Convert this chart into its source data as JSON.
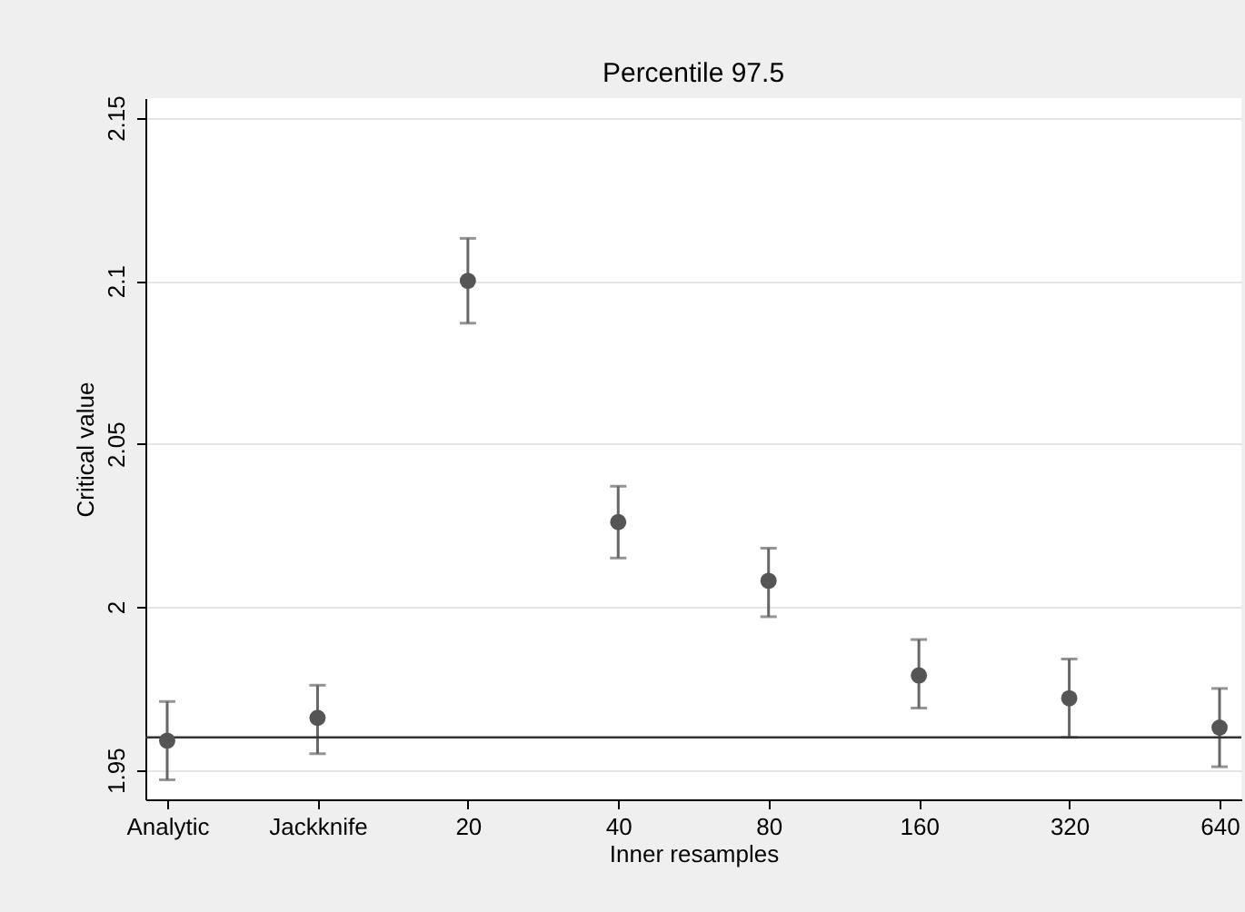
{
  "chart_data": {
    "type": "scatter",
    "title": "Percentile 97.5",
    "xlabel": "Inner resamples",
    "ylabel": "Critical value",
    "categories": [
      "Analytic",
      "Jackknife",
      "20",
      "40",
      "80",
      "160",
      "320",
      "640"
    ],
    "values": [
      1.959,
      1.966,
      2.1,
      2.026,
      2.008,
      1.979,
      1.972,
      1.963
    ],
    "errors": [
      [
        1.947,
        1.971
      ],
      [
        1.955,
        1.976
      ],
      [
        2.087,
        2.113
      ],
      [
        2.015,
        2.037
      ],
      [
        1.997,
        2.018
      ],
      [
        1.969,
        1.99
      ],
      [
        1.96,
        1.984
      ],
      [
        1.951,
        1.975
      ]
    ],
    "color": "#555555",
    "marker": "circle",
    "ylim": [
      1.941,
      2.156
    ],
    "yticks": [
      1.95,
      2,
      2.05,
      2.1,
      2.15
    ],
    "grid": "y",
    "ref_lines": [
      {
        "axis": "y",
        "value": 1.96,
        "color": "#333333",
        "line_style": "solid"
      }
    ]
  }
}
